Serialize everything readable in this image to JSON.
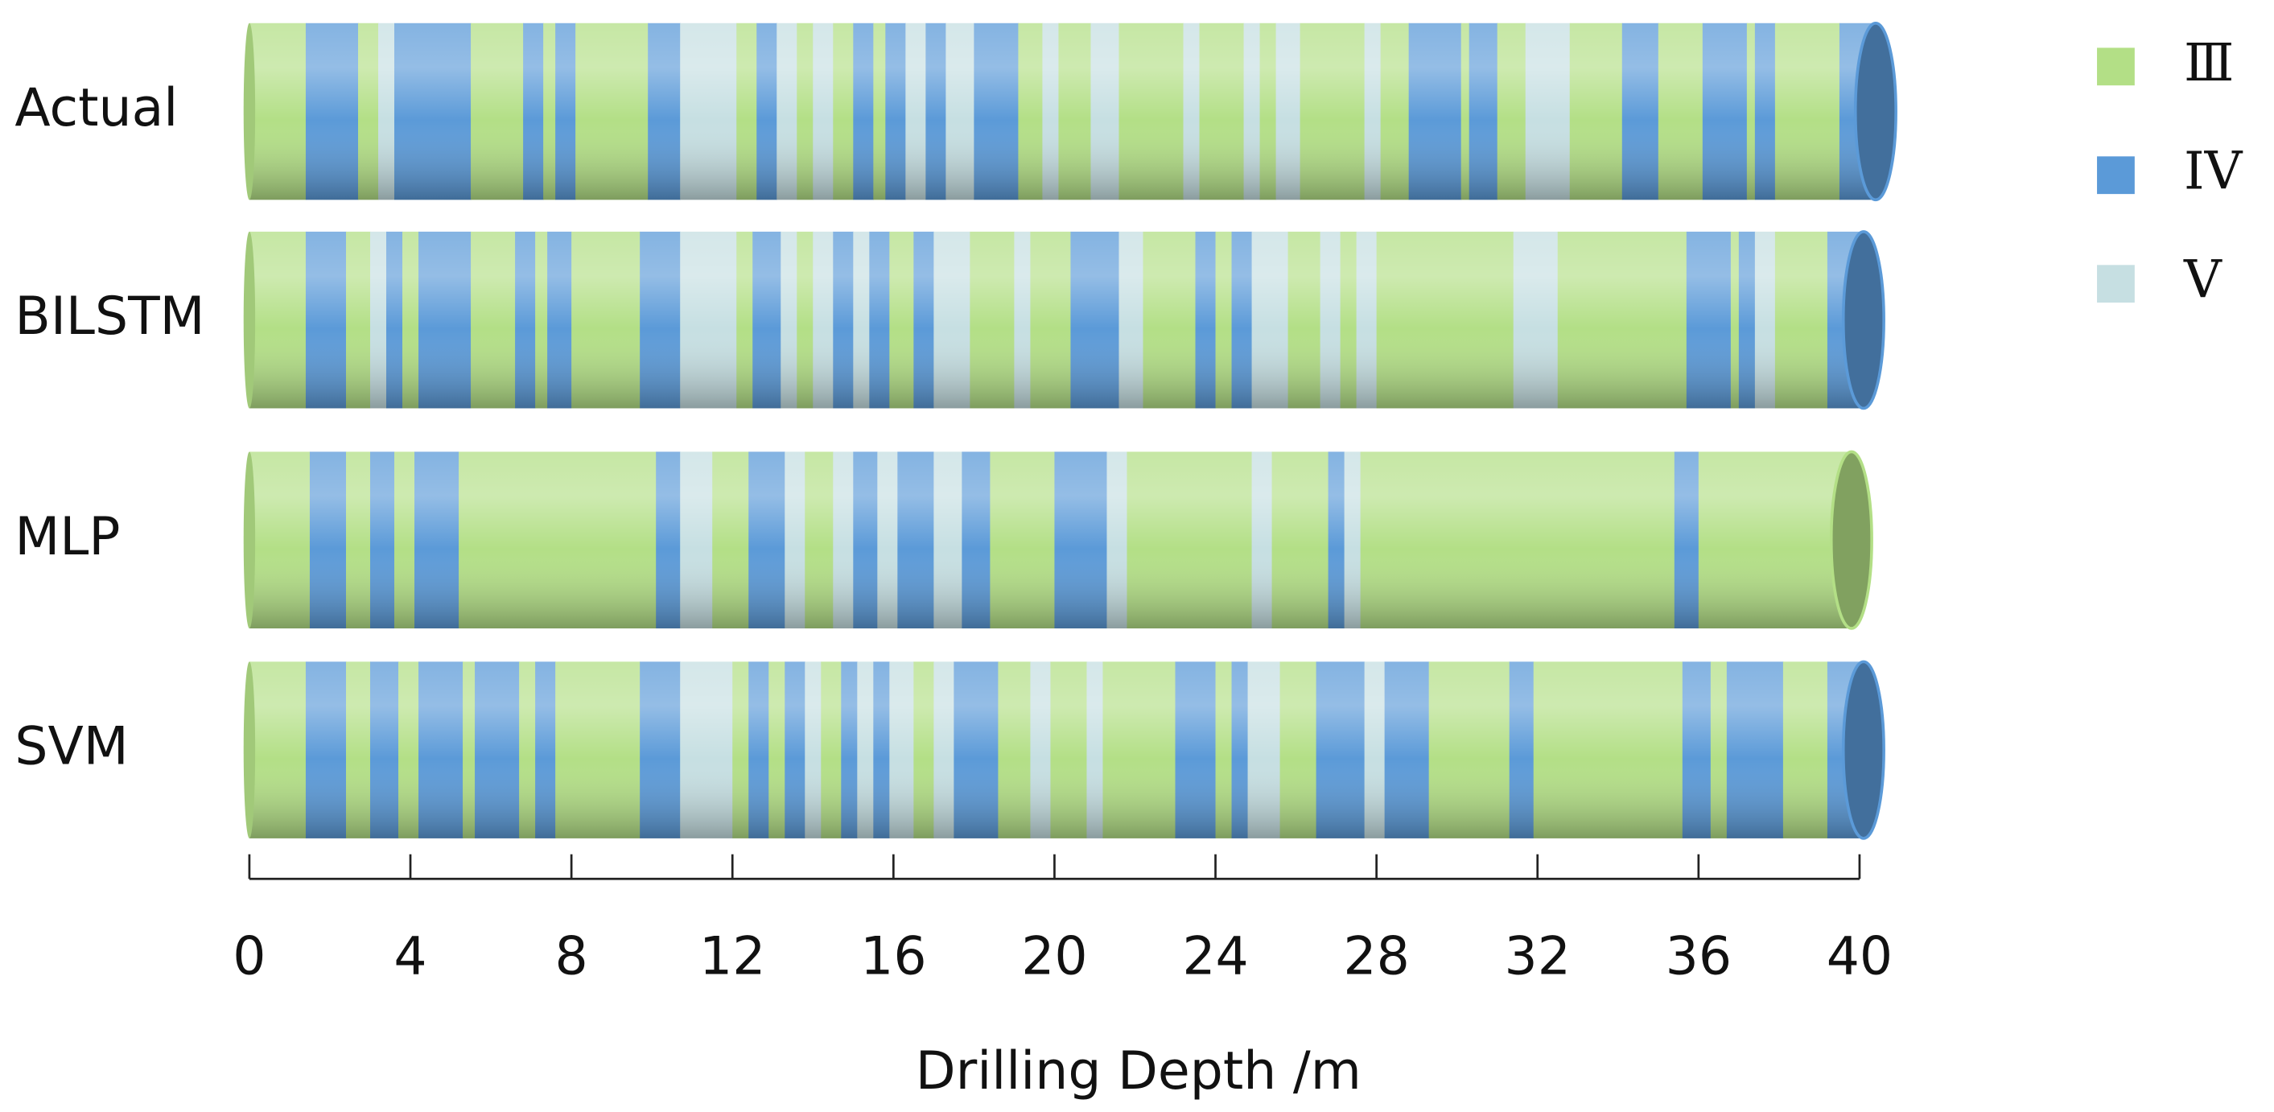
{
  "chart_data": {
    "type": "strip",
    "categories": [
      "Actual",
      "BILSTM",
      "MLP",
      "SVM"
    ],
    "series": [
      {
        "name": "Ⅲ",
        "color": "#b3df86"
      },
      {
        "name": "IV",
        "color": "#5b9ad8"
      },
      {
        "name": "V",
        "color": "#c6dfe2"
      }
    ],
    "rows": [
      {
        "classes": [
          0,
          1,
          0,
          2,
          1,
          0,
          1,
          0,
          1,
          0,
          1,
          2,
          0,
          1,
          2,
          0,
          2,
          0,
          1,
          0,
          1,
          2,
          1,
          2,
          1,
          0,
          2,
          0,
          2,
          0,
          2,
          0,
          2,
          0,
          2,
          0,
          2,
          0,
          1,
          0,
          1,
          0,
          2,
          0,
          1,
          0,
          1,
          0,
          1,
          0,
          1
        ],
        "lengths": [
          1.4,
          1.3,
          0.5,
          0.4,
          1.9,
          1.3,
          0.5,
          0.3,
          0.5,
          1.8,
          0.8,
          1.4,
          0.5,
          0.5,
          0.5,
          0.4,
          0.5,
          0.5,
          0.5,
          0.3,
          0.5,
          0.5,
          0.5,
          0.7,
          1.1,
          0.6,
          0.4,
          0.8,
          0.7,
          1.6,
          0.4,
          1.1,
          0.4,
          0.4,
          0.6,
          1.6,
          0.4,
          0.7,
          1.3,
          0.2,
          0.7,
          0.7,
          1.1,
          1.3,
          0.9,
          1.1,
          1.1,
          0.2,
          0.5,
          1.6,
          0.9
        ]
      },
      {
        "classes": [
          0,
          1,
          0,
          2,
          1,
          0,
          1,
          0,
          1,
          0,
          1,
          0,
          1,
          2,
          0,
          1,
          2,
          0,
          2,
          1,
          2,
          1,
          0,
          1,
          2,
          0,
          2,
          0,
          1,
          2,
          0,
          1,
          0,
          1,
          2,
          0,
          2,
          0,
          2,
          0,
          2,
          0,
          1,
          0,
          1,
          2,
          0,
          1
        ],
        "lengths": [
          1.4,
          1.0,
          0.6,
          0.4,
          0.4,
          0.4,
          1.3,
          1.1,
          0.5,
          0.3,
          0.6,
          1.7,
          1.0,
          1.4,
          0.4,
          0.7,
          0.4,
          0.4,
          0.5,
          0.5,
          0.4,
          0.5,
          0.6,
          0.5,
          0.9,
          1.1,
          0.4,
          1.0,
          1.2,
          0.6,
          1.3,
          0.5,
          0.4,
          0.5,
          0.9,
          0.8,
          0.5,
          0.4,
          0.5,
          3.4,
          1.1,
          3.2,
          1.1,
          0.2,
          0.4,
          0.5,
          1.3,
          0.9
        ]
      },
      {
        "classes": [
          0,
          1,
          0,
          1,
          0,
          1,
          0,
          1,
          2,
          0,
          1,
          2,
          0,
          2,
          1,
          2,
          1,
          2,
          1,
          0,
          1,
          2,
          0,
          2,
          0,
          1,
          2,
          0,
          1,
          0
        ],
        "lengths": [
          1.5,
          0.9,
          0.6,
          0.6,
          0.5,
          1.1,
          4.9,
          0.6,
          0.8,
          0.9,
          0.9,
          0.5,
          0.7,
          0.5,
          0.6,
          0.5,
          0.9,
          0.7,
          0.7,
          1.6,
          1.3,
          0.5,
          3.1,
          0.5,
          1.4,
          0.4,
          0.4,
          7.8,
          0.6,
          3.8
        ]
      },
      {
        "classes": [
          0,
          1,
          0,
          1,
          0,
          1,
          0,
          1,
          0,
          1,
          0,
          1,
          2,
          0,
          1,
          0,
          1,
          2,
          0,
          1,
          2,
          1,
          2,
          0,
          2,
          1,
          0,
          2,
          0,
          2,
          0,
          1,
          0,
          1,
          2,
          0,
          1,
          2,
          1,
          0,
          1,
          0,
          1,
          0,
          1,
          0,
          1
        ],
        "lengths": [
          1.4,
          1.0,
          0.6,
          0.7,
          0.5,
          1.1,
          0.3,
          1.1,
          0.4,
          0.5,
          2.1,
          1.0,
          1.3,
          0.4,
          0.5,
          0.4,
          0.5,
          0.4,
          0.5,
          0.4,
          0.4,
          0.4,
          0.6,
          0.5,
          0.5,
          1.1,
          0.8,
          0.5,
          0.9,
          0.4,
          1.8,
          1.0,
          0.4,
          0.4,
          0.8,
          0.9,
          1.2,
          0.5,
          1.1,
          2.0,
          0.6,
          3.7,
          0.7,
          0.4,
          1.4,
          1.1,
          0.9
        ]
      }
    ],
    "xlim": [
      0,
      40
    ],
    "xticks": [
      0,
      4,
      8,
      12,
      16,
      20,
      24,
      28,
      32,
      36,
      40
    ],
    "xlabel": "Drilling Depth /m"
  }
}
